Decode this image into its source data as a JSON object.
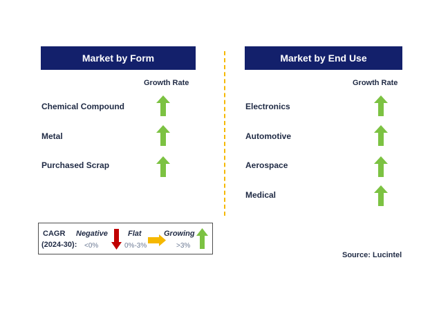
{
  "left_panel": {
    "title": "Market by Form",
    "column_header": "Growth Rate",
    "rows": [
      {
        "label": "Chemical Compound",
        "trend": "growing"
      },
      {
        "label": "Metal",
        "trend": "growing"
      },
      {
        "label": "Purchased Scrap",
        "trend": "growing"
      }
    ]
  },
  "right_panel": {
    "title": "Market by End Use",
    "column_header": "Growth Rate",
    "rows": [
      {
        "label": "Electronics",
        "trend": "growing"
      },
      {
        "label": "Automotive",
        "trend": "growing"
      },
      {
        "label": "Aerospace",
        "trend": "growing"
      },
      {
        "label": "Medical",
        "trend": "growing"
      }
    ]
  },
  "legend": {
    "cagr_label": "CAGR",
    "period_label": "(2024-30):",
    "negative": {
      "label": "Negative",
      "range": "<0%",
      "color": "#c00000"
    },
    "flat": {
      "label": "Flat",
      "range": "0%-3%",
      "color": "#f5b800"
    },
    "growing": {
      "label": "Growing",
      "range": ">3%",
      "color": "#7cc242"
    }
  },
  "source": "Source: Lucintel",
  "colors": {
    "header_bg": "#13206b",
    "divider": "#f5b800",
    "up_arrow": "#7cc242"
  }
}
